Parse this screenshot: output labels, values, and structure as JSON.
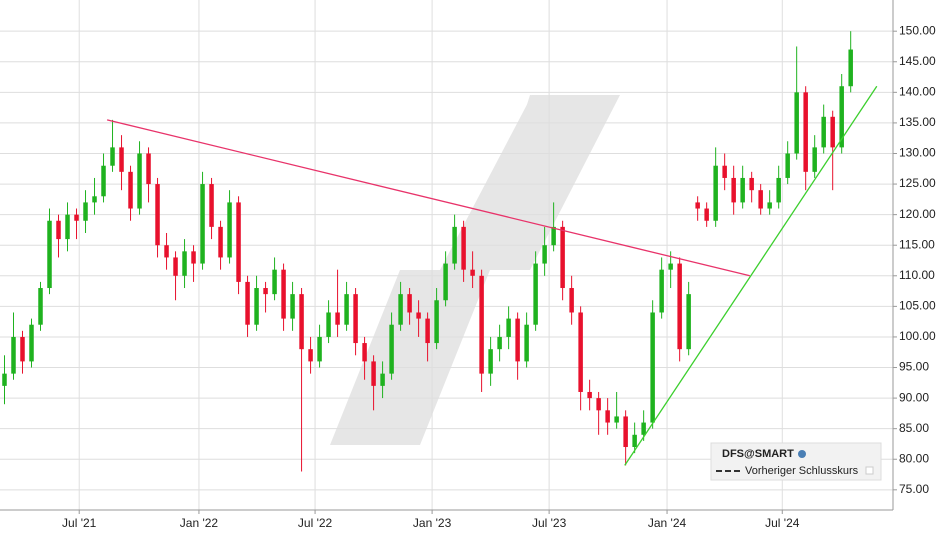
{
  "chart_data": {
    "type": "candlestick",
    "symbol": "DFS@SMART",
    "legend_label": "Vorheriger Schlusskurs",
    "up_color": "#1fb21f",
    "down_color": "#e8112d",
    "xlim": [
      -0.5,
      98.7
    ],
    "xticks": [
      {
        "value": 8.3,
        "label": "Jul '21"
      },
      {
        "value": 21.6,
        "label": "Jan '22"
      },
      {
        "value": 34.5,
        "label": "Jul '22"
      },
      {
        "value": 47.5,
        "label": "Jan '23"
      },
      {
        "value": 60.5,
        "label": "Jul '23"
      },
      {
        "value": 73.6,
        "label": "Jan '24"
      },
      {
        "value": 86.4,
        "label": "Jul '24"
      }
    ],
    "ylim": [
      71.7,
      155.1
    ],
    "yticks": [
      {
        "value": 75,
        "label": "75.00"
      },
      {
        "value": 80,
        "label": "80.00"
      },
      {
        "value": 85,
        "label": "85.00"
      },
      {
        "value": 90,
        "label": "90.00"
      },
      {
        "value": 95,
        "label": "95.00"
      },
      {
        "value": 100,
        "label": "100.00"
      },
      {
        "value": 105,
        "label": "105.00"
      },
      {
        "value": 110,
        "label": "110.00"
      },
      {
        "value": 115,
        "label": "115.00"
      },
      {
        "value": 120,
        "label": "120.00"
      },
      {
        "value": 125,
        "label": "125.00"
      },
      {
        "value": 130,
        "label": "130.00"
      },
      {
        "value": 135,
        "label": "135.00"
      },
      {
        "value": 140,
        "label": "140.00"
      },
      {
        "value": 145,
        "label": "145.00"
      },
      {
        "value": 150,
        "label": "150.00"
      }
    ],
    "grid": true,
    "candles": [
      [
        92,
        97,
        89,
        94
      ],
      [
        94,
        104,
        93,
        100
      ],
      [
        100,
        101,
        94,
        96
      ],
      [
        96,
        103,
        95,
        102
      ],
      [
        102,
        109,
        101,
        108
      ],
      [
        108,
        121,
        107,
        119
      ],
      [
        119,
        120,
        113,
        116
      ],
      [
        116,
        122,
        114,
        120
      ],
      [
        120,
        121,
        116,
        119
      ],
      [
        119,
        124,
        117,
        122
      ],
      [
        122,
        126,
        120,
        123
      ],
      [
        123,
        130,
        122,
        128
      ],
      [
        128,
        135.5,
        127,
        131
      ],
      [
        131,
        133,
        124,
        127
      ],
      [
        127,
        128,
        119,
        121
      ],
      [
        121,
        132,
        120,
        130
      ],
      [
        130,
        131,
        122,
        125
      ],
      [
        125,
        126,
        113,
        115
      ],
      [
        115,
        117,
        111,
        113
      ],
      [
        113,
        114,
        106,
        110
      ],
      [
        110,
        116,
        108,
        114
      ],
      [
        114,
        115,
        109,
        112
      ],
      [
        112,
        127,
        111,
        125
      ],
      [
        125,
        126,
        116,
        118
      ],
      [
        118,
        119,
        111,
        113
      ],
      [
        113,
        124,
        112,
        122
      ],
      [
        122,
        123,
        107,
        109
      ],
      [
        109,
        110,
        100,
        102
      ],
      [
        102,
        110,
        101,
        108
      ],
      [
        108,
        109,
        104,
        107
      ],
      [
        107,
        113,
        106,
        111
      ],
      [
        111,
        112,
        101,
        103
      ],
      [
        103,
        109,
        101,
        107
      ],
      [
        107,
        108,
        78,
        98
      ],
      [
        98,
        100,
        94,
        96
      ],
      [
        96,
        102,
        95,
        100
      ],
      [
        100,
        106,
        99,
        104
      ],
      [
        104,
        111,
        100,
        102
      ],
      [
        102,
        109,
        101,
        107
      ],
      [
        107,
        108,
        97,
        99
      ],
      [
        99,
        100,
        93,
        96
      ],
      [
        96,
        97,
        88,
        92
      ],
      [
        92,
        96,
        90,
        94
      ],
      [
        94,
        104,
        93,
        102
      ],
      [
        102,
        109,
        101,
        107
      ],
      [
        107,
        108,
        102,
        104
      ],
      [
        104,
        106,
        100,
        103
      ],
      [
        103,
        104,
        96,
        99
      ],
      [
        99,
        108,
        98,
        106
      ],
      [
        106,
        114,
        105,
        112
      ],
      [
        112,
        120,
        111,
        118
      ],
      [
        118,
        119,
        109,
        111
      ],
      [
        111,
        114,
        108,
        110
      ],
      [
        110,
        111,
        91,
        94
      ],
      [
        94,
        100,
        92,
        98
      ],
      [
        98,
        102,
        96,
        100
      ],
      [
        100,
        105,
        98,
        103
      ],
      [
        103,
        104,
        93,
        96
      ],
      [
        96,
        104,
        95,
        102
      ],
      [
        102,
        114,
        101,
        112
      ],
      [
        112,
        118,
        110,
        115
      ],
      [
        115,
        122,
        114,
        118
      ],
      [
        118,
        119,
        106,
        108
      ],
      [
        108,
        110,
        102,
        104
      ],
      [
        104,
        105,
        88,
        91
      ],
      [
        91,
        93,
        88,
        90
      ],
      [
        90,
        91,
        84,
        88
      ],
      [
        88,
        90,
        84,
        86
      ],
      [
        86,
        91,
        85,
        87
      ],
      [
        87,
        88,
        79,
        82
      ],
      [
        82,
        86,
        81,
        84
      ],
      [
        84,
        88,
        83,
        86
      ],
      [
        86,
        106,
        85,
        104
      ],
      [
        104,
        113,
        103,
        111
      ],
      [
        111,
        114,
        108,
        112
      ],
      [
        112,
        113,
        96,
        98
      ],
      [
        98,
        109,
        97,
        107
      ],
      [
        122,
        123,
        119,
        121
      ],
      [
        121,
        122,
        118,
        119
      ],
      [
        119,
        131,
        118,
        128
      ],
      [
        128,
        130,
        124,
        126
      ],
      [
        126,
        128,
        120,
        122
      ],
      [
        122,
        128,
        121,
        126
      ],
      [
        126,
        127,
        122,
        124
      ],
      [
        124,
        125,
        120,
        121
      ],
      [
        121,
        124,
        120,
        122
      ],
      [
        122,
        128,
        121,
        126
      ],
      [
        126,
        132,
        125,
        130
      ],
      [
        130,
        147.5,
        129,
        140
      ],
      [
        140,
        141,
        124,
        127
      ],
      [
        127,
        133,
        126,
        131
      ],
      [
        131,
        138,
        130,
        136
      ],
      [
        136,
        137,
        124,
        131
      ],
      [
        131,
        143,
        130,
        141
      ],
      [
        141,
        150,
        140,
        147
      ]
    ],
    "lines": [
      {
        "color": "#e8336a",
        "points": [
          [
            11.4,
            135.5
          ],
          [
            82.8,
            110
          ]
        ]
      },
      {
        "color": "#3ccf2e",
        "points": [
          [
            68.9,
            79
          ],
          [
            96.9,
            141
          ]
        ]
      }
    ]
  }
}
